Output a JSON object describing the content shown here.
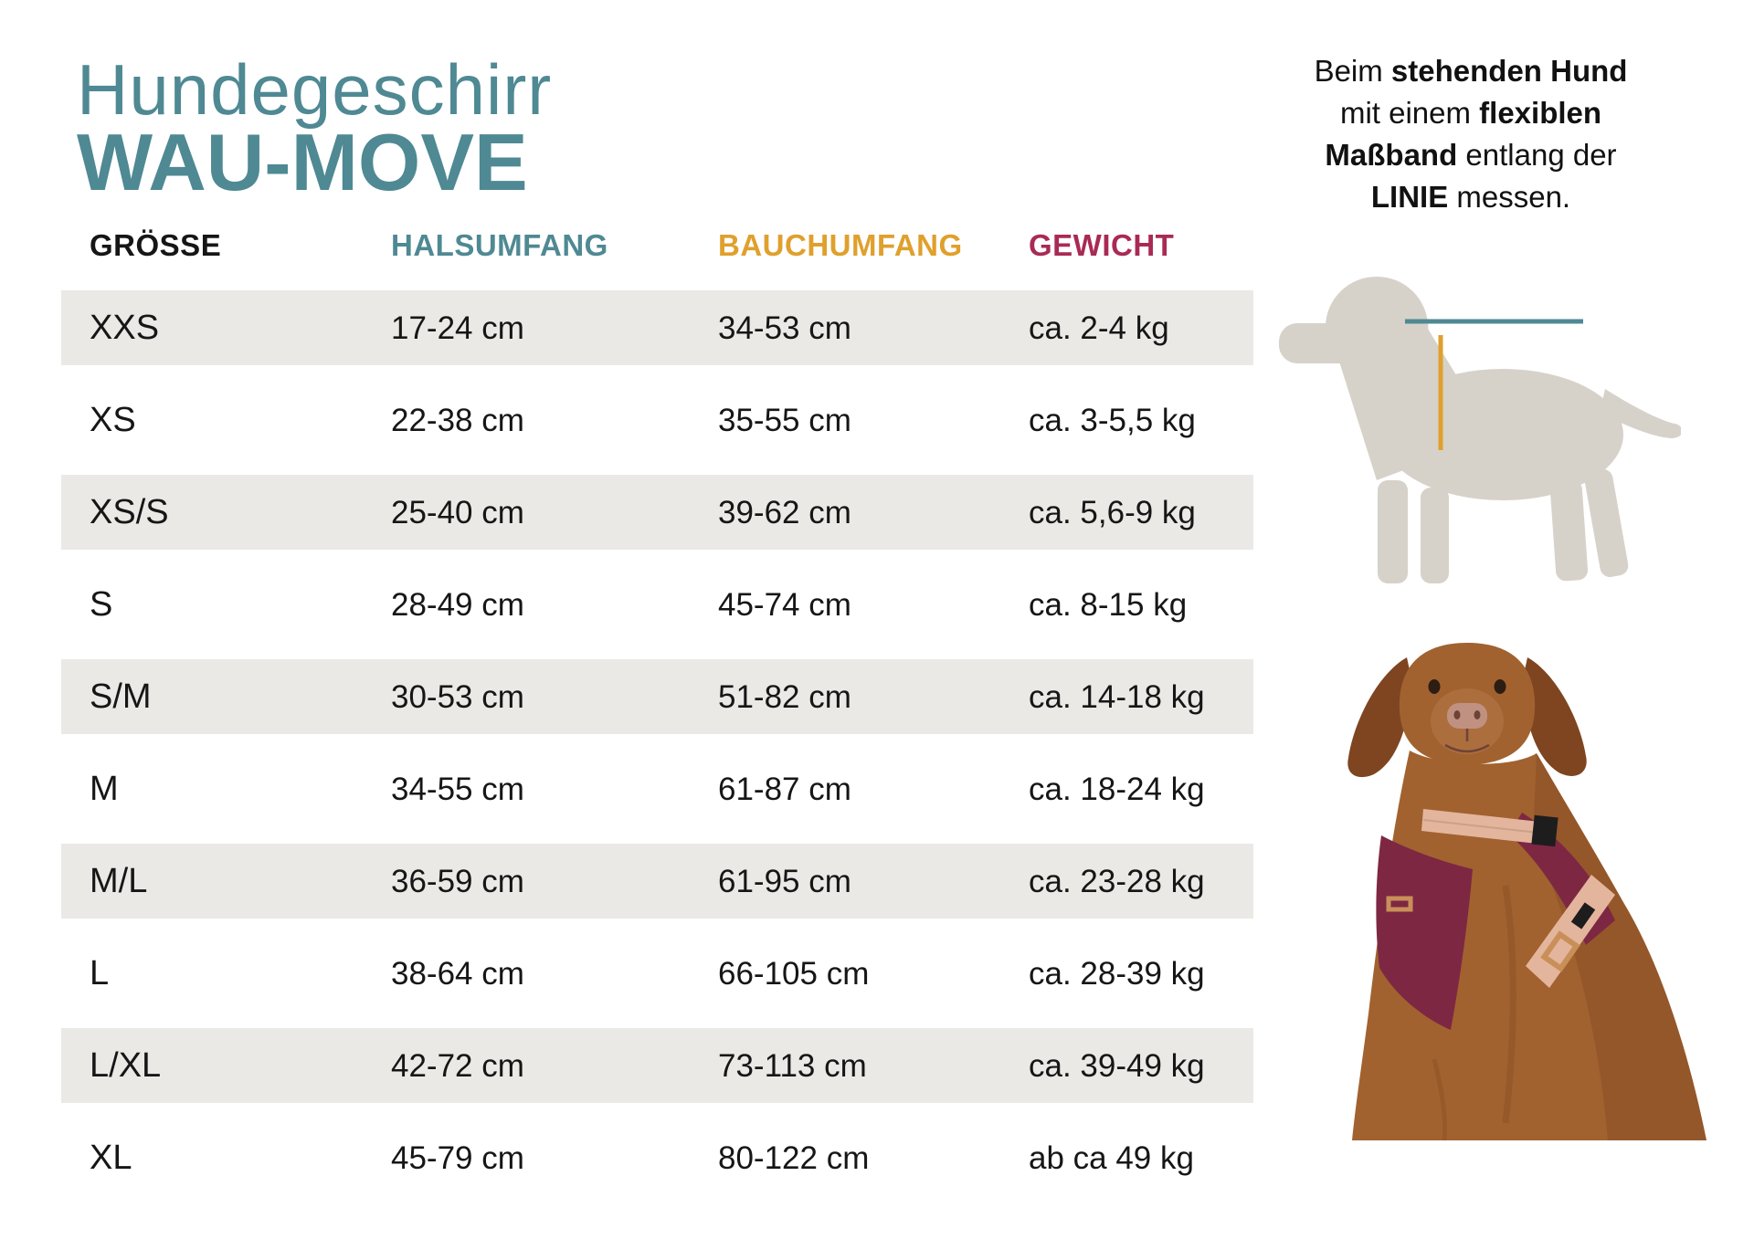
{
  "title": {
    "line1": "Hundegeschirr",
    "line2": "WAU-MOVE",
    "color": "#4f8993"
  },
  "table": {
    "row_background": "#ebe9e6",
    "headers": [
      {
        "label": "GRÖSSE",
        "color": "#161616"
      },
      {
        "label": "HALSUMFANG",
        "color": "#4f8993"
      },
      {
        "label": "BAUCHUMFANG",
        "color": "#dfa02d"
      },
      {
        "label": "GEWICHT",
        "color": "#a92a55"
      }
    ],
    "rows": [
      {
        "size": "XXS",
        "neck": "17-24 cm",
        "chest": "34-53 cm",
        "weight": "ca. 2-4 kg",
        "shaded": true
      },
      {
        "size": "XS",
        "neck": "22-38 cm",
        "chest": "35-55 cm",
        "weight": "ca. 3-5,5 kg",
        "shaded": false
      },
      {
        "size": "XS/S",
        "neck": "25-40 cm",
        "chest": "39-62 cm",
        "weight": "ca. 5,6-9 kg",
        "shaded": true
      },
      {
        "size": "S",
        "neck": "28-49 cm",
        "chest": "45-74 cm",
        "weight": "ca. 8-15 kg",
        "shaded": false
      },
      {
        "size": "S/M",
        "neck": "30-53 cm",
        "chest": "51-82 cm",
        "weight": "ca. 14-18 kg",
        "shaded": true
      },
      {
        "size": "M",
        "neck": "34-55 cm",
        "chest": "61-87 cm",
        "weight": "ca. 18-24 kg",
        "shaded": false
      },
      {
        "size": "M/L",
        "neck": "36-59 cm",
        "chest": "61-95 cm",
        "weight": "ca. 23-28 kg",
        "shaded": true
      },
      {
        "size": "L",
        "neck": "38-64 cm",
        "chest": "66-105 cm",
        "weight": "ca. 28-39 kg",
        "shaded": false
      },
      {
        "size": "L/XL",
        "neck": "42-72 cm",
        "chest": "73-113 cm",
        "weight": "ca. 39-49 kg",
        "shaded": true
      },
      {
        "size": "XL",
        "neck": "45-79 cm",
        "chest": "80-122 cm",
        "weight": "ab ca 49 kg",
        "shaded": false
      }
    ]
  },
  "instructions": {
    "segments": [
      {
        "text": "Beim ",
        "bold": false
      },
      {
        "text": "stehenden Hund",
        "bold": true
      },
      {
        "text": " mit einem ",
        "bold": false
      },
      {
        "text": "flexiblen",
        "bold": true
      },
      {
        "text": " ",
        "bold": false
      },
      {
        "text": "Maßband",
        "bold": true
      },
      {
        "text": " entlang der ",
        "bold": false
      },
      {
        "text": "LINIE",
        "bold": true
      },
      {
        "text": " messen.",
        "bold": false
      }
    ]
  },
  "measure_diagram": {
    "silhouette_color": "#d7d2c9",
    "back_line_color": "#4f8993",
    "girth_line_color": "#dfa02d"
  }
}
